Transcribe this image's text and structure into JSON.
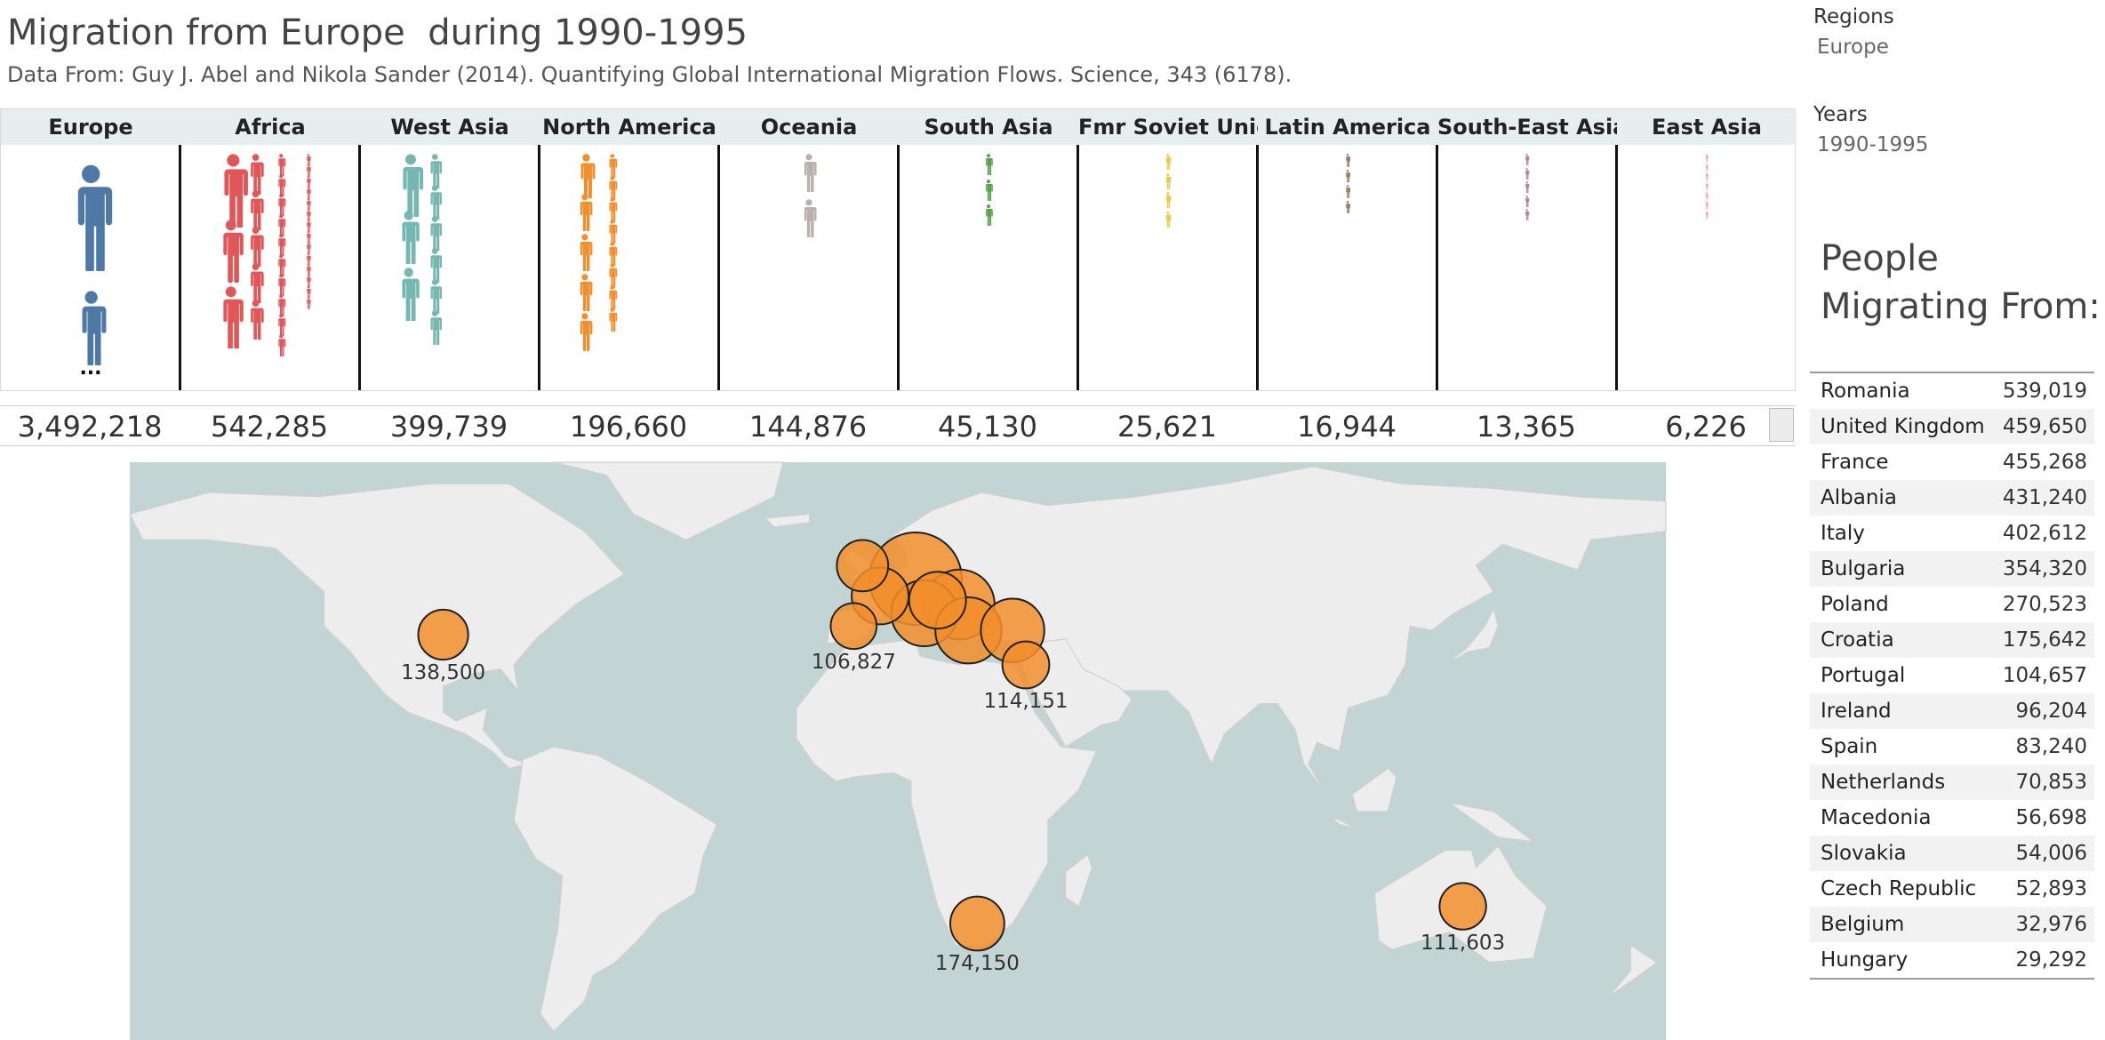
{
  "header": {
    "title": "Migration from Europe  during 1990-1995",
    "subtitle": "Data From: Guy J. Abel and Nikola Sander (2014). Quantifying Global International Migration Flows. Science, 343 (6178)."
  },
  "filters": {
    "regions_label": "Regions",
    "regions_value": "Europe",
    "years_label": "Years",
    "years_value": "1990-1995"
  },
  "side_panel": {
    "title_line1": "People",
    "title_line2": "Migrating From:"
  },
  "colors": {
    "Europe": "#4e79a7",
    "Africa": "#e15759",
    "West Asia": "#76b7b2",
    "North America": "#f28e2b",
    "Oceania": "#bab0ac",
    "South Asia": "#59a14f",
    "Fmr Soviet Union": "#edc948",
    "Latin America": "#9c755f",
    "South-East Asia": "#b07aa1",
    "East Asia": "#ff9da7",
    "bubble": "#f28e2b",
    "ocean": "#c2d4d4",
    "land": "#ededed"
  },
  "chart_data": [
    {
      "type": "bar",
      "categories": [
        "Europe",
        "Africa",
        "West Asia",
        "North America",
        "Oceania",
        "South Asia",
        "Fmr Soviet Union",
        "Latin America",
        "South-East Asia",
        "East Asia"
      ],
      "values": [
        3492218,
        542285,
        399739,
        196660,
        144876,
        45130,
        25621,
        16944,
        13365,
        6226
      ],
      "value_labels": [
        "3,492,218",
        "542,285",
        "399,739",
        "196,660",
        "144,876",
        "45,130",
        "25,621",
        "16,944",
        "13,365",
        "6,226"
      ],
      "ellipsis": "..."
    },
    {
      "type": "scatter",
      "points": [
        {
          "lon": -97,
          "lat": 38,
          "value": 138500,
          "label": "138,500"
        },
        {
          "lon": -4,
          "lat": 40,
          "value": 106827,
          "label": "106,827"
        },
        {
          "lon": 35,
          "lat": 31,
          "value": 114151,
          "label": "114,151"
        },
        {
          "lon": 24,
          "lat": -29,
          "value": 174150,
          "label": "174,150"
        },
        {
          "lon": 134,
          "lat": -25,
          "value": 111603,
          "label": "111,603"
        },
        {
          "lon": 10,
          "lat": 51,
          "value": 700000,
          "label": ""
        },
        {
          "lon": -2,
          "lat": 54,
          "value": 150000,
          "label": ""
        },
        {
          "lon": 2,
          "lat": 47,
          "value": 200000,
          "label": ""
        },
        {
          "lon": 12,
          "lat": 43,
          "value": 300000,
          "label": ""
        },
        {
          "lon": 20,
          "lat": 45,
          "value": 350000,
          "label": ""
        },
        {
          "lon": 15,
          "lat": 46,
          "value": 200000,
          "label": ""
        },
        {
          "lon": 22,
          "lat": 39,
          "value": 300000,
          "label": ""
        },
        {
          "lon": 32,
          "lat": 39,
          "value": 270000,
          "label": ""
        }
      ]
    }
  ],
  "countries": [
    {
      "name": "Romania",
      "value": "539,019"
    },
    {
      "name": "United Kingdom",
      "value": "459,650"
    },
    {
      "name": "France",
      "value": "455,268"
    },
    {
      "name": "Albania",
      "value": "431,240"
    },
    {
      "name": "Italy",
      "value": "402,612"
    },
    {
      "name": "Bulgaria",
      "value": "354,320"
    },
    {
      "name": "Poland",
      "value": "270,523"
    },
    {
      "name": "Croatia",
      "value": "175,642"
    },
    {
      "name": "Portugal",
      "value": "104,657"
    },
    {
      "name": "Ireland",
      "value": "96,204"
    },
    {
      "name": "Spain",
      "value": "83,240"
    },
    {
      "name": "Netherlands",
      "value": "70,853"
    },
    {
      "name": "Macedonia",
      "value": "56,698"
    },
    {
      "name": "Slovakia",
      "value": "54,006"
    },
    {
      "name": "Czech Republic",
      "value": "52,893"
    },
    {
      "name": "Belgium",
      "value": "32,976"
    },
    {
      "name": "Hungary",
      "value": "29,292"
    }
  ]
}
